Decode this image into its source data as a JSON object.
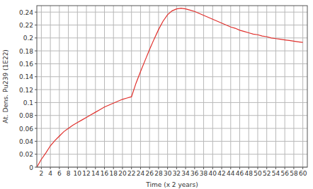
{
  "chart_data": {
    "type": "line",
    "x_label": "Time (x 2 years)",
    "y_label": "At. Dens. Pu239 (1E22)",
    "x": [
      1,
      2,
      3,
      4,
      5,
      6,
      7,
      8,
      9,
      10,
      11,
      12,
      13,
      14,
      15,
      16,
      17,
      18,
      19,
      20,
      21,
      22,
      23,
      24,
      25,
      26,
      27,
      28,
      29,
      30,
      31,
      32,
      33,
      34,
      35,
      36,
      37,
      38,
      39,
      40,
      41,
      42,
      43,
      44,
      45,
      46,
      47,
      48,
      49,
      50,
      51,
      52,
      53,
      54,
      55,
      56,
      57,
      58,
      59,
      60
    ],
    "series": [
      {
        "name": "Pu239",
        "color": "#e0302c",
        "values": [
          0.0,
          0.012,
          0.022,
          0.033,
          0.041,
          0.048,
          0.055,
          0.06,
          0.065,
          0.069,
          0.073,
          0.077,
          0.081,
          0.085,
          0.089,
          0.093,
          0.096,
          0.099,
          0.102,
          0.105,
          0.107,
          0.109,
          0.13,
          0.148,
          0.165,
          0.182,
          0.198,
          0.213,
          0.226,
          0.236,
          0.242,
          0.245,
          0.246,
          0.245,
          0.243,
          0.241,
          0.238,
          0.235,
          0.232,
          0.229,
          0.226,
          0.223,
          0.22,
          0.217,
          0.215,
          0.212,
          0.21,
          0.208,
          0.206,
          0.205,
          0.203,
          0.202,
          0.2,
          0.199,
          0.198,
          0.197,
          0.196,
          0.195,
          0.194,
          0.193
        ]
      }
    ],
    "xlim": [
      1,
      61
    ],
    "xticks": [
      2,
      4,
      6,
      8,
      10,
      12,
      14,
      16,
      18,
      20,
      22,
      24,
      26,
      28,
      30,
      32,
      34,
      36,
      38,
      40,
      42,
      44,
      46,
      48,
      50,
      52,
      54,
      56,
      58,
      60
    ],
    "ylim": [
      0,
      0.25
    ],
    "yticks": [
      0,
      0.02,
      0.04,
      0.06,
      0.08,
      0.1,
      0.12,
      0.14,
      0.16,
      0.18,
      0.2,
      0.22,
      0.24
    ],
    "grid": true
  }
}
